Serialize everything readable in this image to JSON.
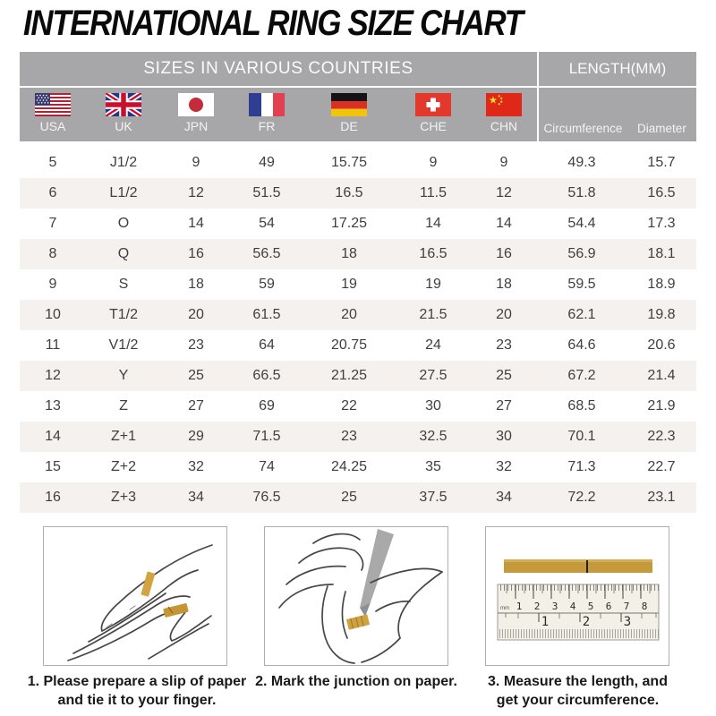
{
  "title": "INTERNATIONAL RING SIZE CHART",
  "table": {
    "group_headers": {
      "sizes": "SIZES IN VARIOUS COUNTRIES",
      "length": "LENGTH(MM)"
    },
    "countries": [
      {
        "code": "USA",
        "flag": "usa-flag-icon"
      },
      {
        "code": "UK",
        "flag": "uk-flag-icon"
      },
      {
        "code": "JPN",
        "flag": "japan-flag-icon"
      },
      {
        "code": "FR",
        "flag": "france-flag-icon"
      },
      {
        "code": "DE",
        "flag": "germany-flag-icon"
      },
      {
        "code": "CHE",
        "flag": "switzerland-flag-icon"
      },
      {
        "code": "CHN",
        "flag": "china-flag-icon"
      }
    ],
    "length_columns": [
      "Circumference",
      "Diameter"
    ],
    "rows": [
      [
        "5",
        "J1/2",
        "9",
        "49",
        "15.75",
        "9",
        "9",
        "49.3",
        "15.7"
      ],
      [
        "6",
        "L1/2",
        "12",
        "51.5",
        "16.5",
        "11.5",
        "12",
        "51.8",
        "16.5"
      ],
      [
        "7",
        "O",
        "14",
        "54",
        "17.25",
        "14",
        "14",
        "54.4",
        "17.3"
      ],
      [
        "8",
        "Q",
        "16",
        "56.5",
        "18",
        "16.5",
        "16",
        "56.9",
        "18.1"
      ],
      [
        "9",
        "S",
        "18",
        "59",
        "19",
        "19",
        "18",
        "59.5",
        "18.9"
      ],
      [
        "10",
        "T1/2",
        "20",
        "61.5",
        "20",
        "21.5",
        "20",
        "62.1",
        "19.8"
      ],
      [
        "11",
        "V1/2",
        "23",
        "64",
        "20.75",
        "24",
        "23",
        "64.6",
        "20.6"
      ],
      [
        "12",
        "Y",
        "25",
        "66.5",
        "21.25",
        "27.5",
        "25",
        "67.2",
        "21.4"
      ],
      [
        "13",
        "Z",
        "27",
        "69",
        "22",
        "30",
        "27",
        "68.5",
        "21.9"
      ],
      [
        "14",
        "Z+1",
        "29",
        "71.5",
        "23",
        "32.5",
        "30",
        "70.1",
        "22.3"
      ],
      [
        "15",
        "Z+2",
        "32",
        "74",
        "24.25",
        "35",
        "32",
        "71.3",
        "22.7"
      ],
      [
        "16",
        "Z+3",
        "34",
        "76.5",
        "25",
        "37.5",
        "34",
        "72.2",
        "23.1"
      ]
    ]
  },
  "instructions": [
    {
      "illustration": "hand-with-paper-strip-illustration",
      "lines": [
        "1. Please prepare a slip of paper",
        "and tie it to your finger."
      ]
    },
    {
      "illustration": "pen-marking-junction-illustration",
      "lines": [
        "2. Mark the junction on paper."
      ]
    },
    {
      "illustration": "ruler-measuring-strip-illustration",
      "lines": [
        "3. Measure the length, and",
        "get your circumference."
      ],
      "ruler": {
        "unit": "mm",
        "cm_ticks": [
          "1",
          "2",
          "3",
          "4",
          "5",
          "6",
          "7",
          "8"
        ],
        "inch_ticks": [
          "1",
          "2",
          "3"
        ]
      }
    }
  ],
  "colors": {
    "header_gray": "#a7a7aa",
    "alt_row": "#f5f1ef",
    "paper_gold": "#c59a3c",
    "text": "#3f3f3f"
  }
}
